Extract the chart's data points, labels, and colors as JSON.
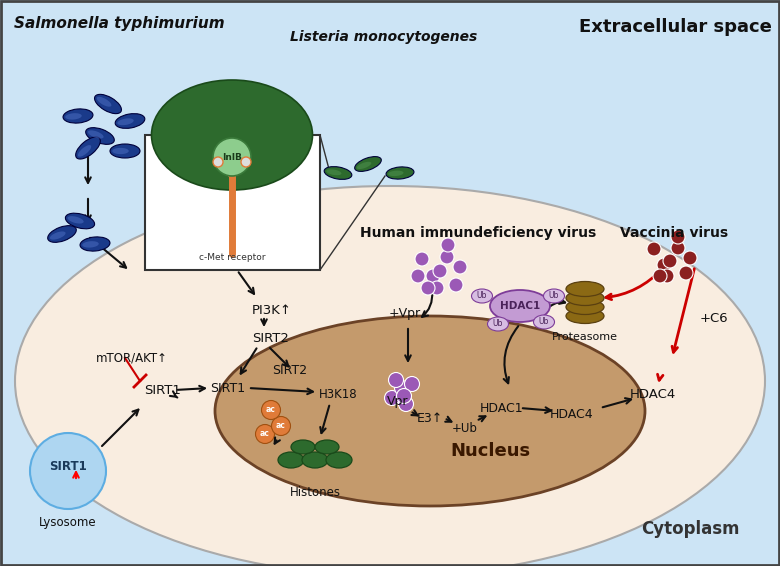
{
  "bg_extracellular": "#cce4f5",
  "bg_cytoplasm": "#f9ede0",
  "bg_nucleus": "#b8895a",
  "nucleus_fill": "#c49a6c",
  "salmonella_color": "#1a3a8a",
  "listeria_color": "#2d6a2d",
  "hiv_color": "#9b59b6",
  "vaccinia_color": "#8b2020",
  "cmet_color": "#e07b39",
  "ac_color": "#e07b39",
  "histone_color": "#2d6a2d",
  "proteasome_color": "#8B6914",
  "lysosome_color": "#aed6f1",
  "ub_color": "#d7bde2",
  "ub_border": "#7d3c98",
  "hdac1_fill": "#c39bd3",
  "arrow_black": "#111111",
  "arrow_red": "#cc0000",
  "title_extracellular": "Extracellular space",
  "label_salmonella": "Salmonella typhimurium",
  "label_listeria": "Listeria monocytogenes",
  "label_hiv": "Human immundeficiency virus",
  "label_vaccinia": "Vaccinia virus",
  "label_pi3k": "PI3K↑",
  "label_sirt2_cyto": "SIRT2",
  "label_mtor": "mTOR/AKT↑",
  "label_sirt1_cyto": "SIRT1",
  "label_lysosome": "Lysosome",
  "label_nucleus": "Nucleus",
  "label_cytoplasm": "Cytoplasm",
  "label_inlb": "InlB",
  "label_cmet": "c-Met receptor",
  "label_sirt1_nuc": "SIRT1",
  "label_sirt2_nuc": "SIRT2",
  "label_h3k18": "H3K18",
  "label_histones": "Histones",
  "label_vpr_entry": "+Vpr",
  "label_vpr_nuc": "Vpr",
  "label_e3": "E3↑",
  "label_plus_ub": "+Ub",
  "label_hdac4_nuc": "HDAC4",
  "label_hdac4_cyto": "HDAC4",
  "label_plus_c6": "+C6",
  "label_proteasome": "Proteasome",
  "label_hdac1_nuc": "HDAC1"
}
